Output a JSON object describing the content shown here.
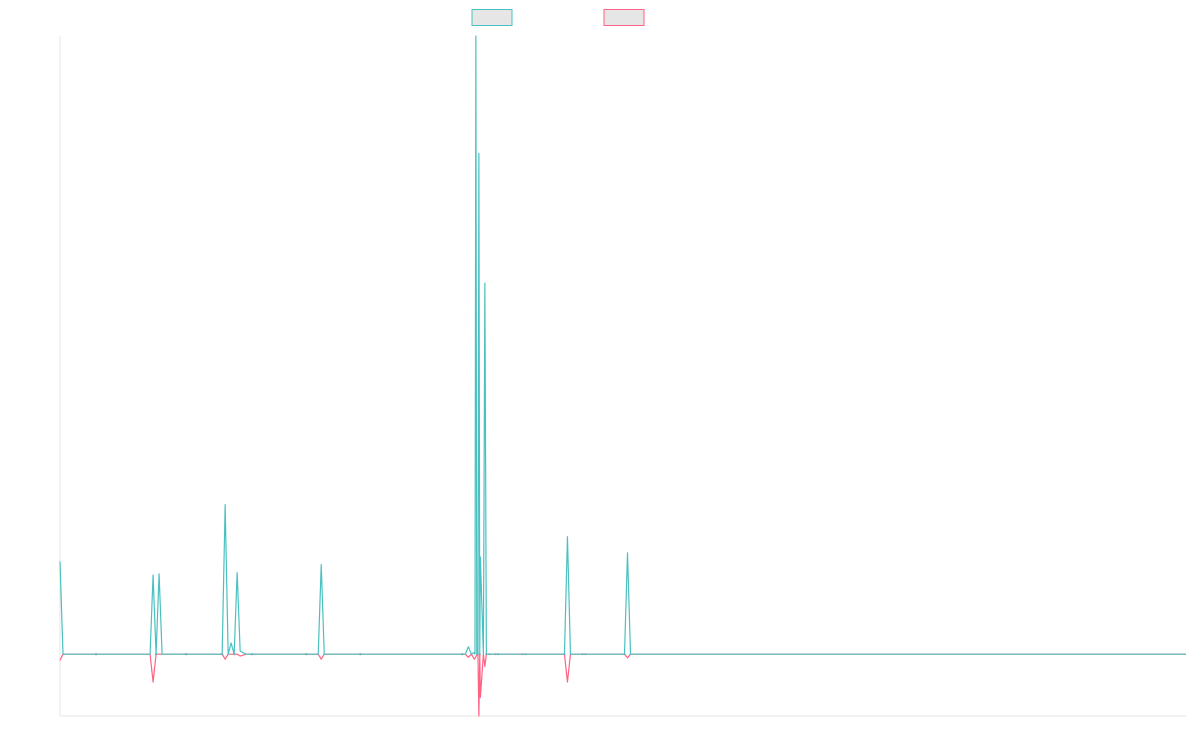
{
  "chart_data": {
    "type": "line",
    "title": "",
    "xlabel": "",
    "ylabel": "",
    "grid": false,
    "legend_placement": "top-center",
    "xlim": [
      0,
      375
    ],
    "ylim": [
      -100,
      1000
    ],
    "series": [
      {
        "name": "",
        "color": "#4bc0c0",
        "fill": "#e6e6e6",
        "points": [
          [
            0,
            150
          ],
          [
            1,
            0
          ],
          [
            4,
            0
          ],
          [
            8,
            0
          ],
          [
            12,
            0
          ],
          [
            29,
            0
          ],
          [
            30,
            0
          ],
          [
            31,
            128
          ],
          [
            32,
            0
          ],
          [
            33,
            130
          ],
          [
            34,
            0
          ],
          [
            37,
            0
          ],
          [
            42,
            0
          ],
          [
            47,
            0
          ],
          [
            49,
            0
          ],
          [
            52,
            0
          ],
          [
            54,
            0
          ],
          [
            55,
            242
          ],
          [
            56,
            0
          ],
          [
            57,
            18
          ],
          [
            58,
            0
          ],
          [
            59,
            132
          ],
          [
            60,
            5
          ],
          [
            62,
            0
          ],
          [
            64,
            0
          ],
          [
            66,
            0
          ],
          [
            69,
            0
          ],
          [
            76,
            0
          ],
          [
            82,
            0
          ],
          [
            86,
            0
          ],
          [
            87,
            145
          ],
          [
            88,
            0
          ],
          [
            100,
            0
          ],
          [
            105,
            0
          ],
          [
            113,
            0
          ],
          [
            123,
            0
          ],
          [
            134,
            0
          ],
          [
            135,
            0
          ],
          [
            136,
            12
          ],
          [
            137,
            0
          ],
          [
            138,
            3
          ],
          [
            139,
            0
          ],
          [
            140,
            157
          ],
          [
            141,
            0
          ],
          [
            141.5,
            600
          ],
          [
            142,
            0
          ],
          [
            143,
            0
          ],
          [
            144,
            0
          ],
          [
            144.5,
            0
          ],
          [
            145,
            0
          ],
          [
            146,
            0
          ],
          [
            148,
            0
          ],
          [
            153,
            0
          ],
          [
            154,
            0
          ],
          [
            155,
            0
          ],
          [
            156,
            0
          ],
          [
            165,
            0
          ],
          [
            168,
            0
          ],
          [
            169,
            190
          ],
          [
            170,
            0
          ],
          [
            170.5,
            0
          ],
          [
            174,
            0
          ],
          [
            175,
            0
          ],
          [
            176,
            0
          ],
          [
            182,
            0
          ],
          [
            188,
            0
          ],
          [
            189,
            164
          ],
          [
            190,
            0
          ],
          [
            191,
            0
          ],
          [
            200,
            0
          ],
          [
            375,
            0
          ]
        ]
      },
      {
        "name": "",
        "color": "#ff6384",
        "fill": "#e6e6e6",
        "points": [
          [
            0,
            -10
          ],
          [
            1,
            0
          ],
          [
            4,
            0
          ],
          [
            8,
            0
          ],
          [
            12,
            0
          ],
          [
            29,
            0
          ],
          [
            30,
            0
          ],
          [
            31,
            -45
          ],
          [
            32,
            0
          ],
          [
            33,
            0
          ],
          [
            34,
            0
          ],
          [
            37,
            0
          ],
          [
            42,
            0
          ],
          [
            47,
            0
          ],
          [
            49,
            0
          ],
          [
            52,
            0
          ],
          [
            54,
            0
          ],
          [
            55,
            -8
          ],
          [
            56,
            0
          ],
          [
            57,
            0
          ],
          [
            58,
            0
          ],
          [
            59,
            0
          ],
          [
            60,
            -3
          ],
          [
            62,
            0
          ],
          [
            64,
            0
          ],
          [
            66,
            0
          ],
          [
            69,
            0
          ],
          [
            76,
            0
          ],
          [
            82,
            0
          ],
          [
            86,
            0
          ],
          [
            87,
            -8
          ],
          [
            88,
            0
          ],
          [
            100,
            0
          ],
          [
            105,
            0
          ],
          [
            113,
            0
          ],
          [
            123,
            0
          ],
          [
            134,
            0
          ],
          [
            135,
            0
          ],
          [
            136,
            -5
          ],
          [
            137,
            0
          ],
          [
            138,
            -8
          ],
          [
            139,
            0
          ],
          [
            140,
            -70
          ],
          [
            141,
            0
          ],
          [
            141.5,
            -20
          ],
          [
            142,
            0
          ],
          [
            143,
            0
          ],
          [
            144,
            0
          ],
          [
            144.5,
            0
          ],
          [
            145,
            0
          ],
          [
            146,
            0
          ],
          [
            148,
            0
          ],
          [
            153,
            0
          ],
          [
            154,
            0
          ],
          [
            155,
            0
          ],
          [
            156,
            0
          ],
          [
            165,
            0
          ],
          [
            168,
            0
          ],
          [
            169,
            -45
          ],
          [
            170,
            0
          ],
          [
            170.5,
            0
          ],
          [
            174,
            0
          ],
          [
            175,
            0
          ],
          [
            176,
            0
          ],
          [
            182,
            0
          ],
          [
            188,
            0
          ],
          [
            189,
            -6
          ],
          [
            190,
            0
          ],
          [
            191,
            0
          ],
          [
            200,
            0
          ],
          [
            375,
            0
          ]
        ]
      }
    ],
    "spikes": [
      {
        "series": 0,
        "x": 138.5,
        "y": 1000
      },
      {
        "series": 0,
        "x": 139.5,
        "y": 810
      },
      {
        "series": 1,
        "x": 139.5,
        "y": -100
      }
    ]
  }
}
